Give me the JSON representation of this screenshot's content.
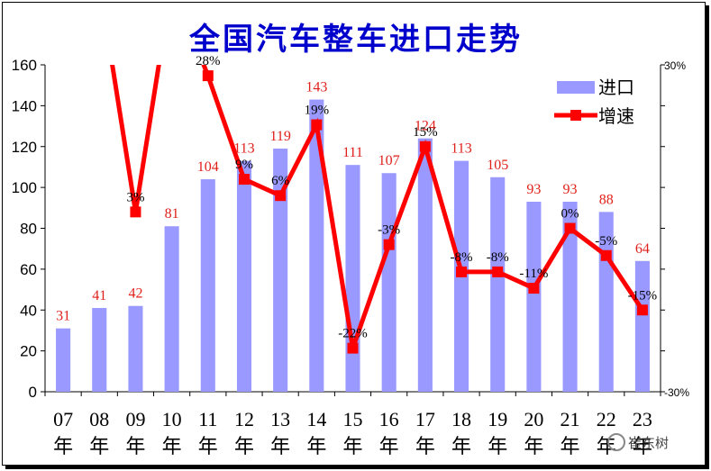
{
  "chart_data": {
    "type": "bar",
    "title": "全国汽车整车进口走势",
    "categories": [
      "07",
      "08",
      "09",
      "10",
      "11",
      "12",
      "13",
      "14",
      "15",
      "16",
      "17",
      "18",
      "19",
      "20",
      "21",
      "22",
      "23"
    ],
    "category_suffix": "年",
    "series": [
      {
        "name": "进口",
        "type": "bar",
        "axis": "left",
        "color": "#9999ff",
        "values": [
          31,
          41,
          42,
          81,
          104,
          113,
          119,
          143,
          111,
          107,
          124,
          113,
          105,
          93,
          93,
          88,
          64
        ]
      },
      {
        "name": "增速",
        "type": "line",
        "axis": "right",
        "color": "#ff0000",
        "values": [
          null,
          null,
          3,
          null,
          28,
          9,
          6,
          19,
          -22,
          -3,
          15,
          -8,
          -8,
          -11,
          0,
          -5,
          -15
        ]
      }
    ],
    "bar_labels": [
      "31",
      "41",
      "42",
      "81",
      "104",
      "113",
      "119",
      "143",
      "111",
      "107",
      "124",
      "113",
      "105",
      "93",
      "93",
      "88",
      "64"
    ],
    "pct_labels": [
      "",
      "",
      "3%",
      "",
      "28%",
      "9%",
      "6%",
      "19%",
      "-22%",
      "-3%",
      "15%",
      "-8%",
      "-8%",
      "-11%",
      "0%",
      "-5%",
      "-15%"
    ],
    "off_chart_trend": "line exits above the top at 08 and 10",
    "y_left": {
      "range": [
        0,
        160
      ],
      "ticks": [
        "0",
        "20",
        "40",
        "60",
        "80",
        "100",
        "120",
        "140",
        "160"
      ]
    },
    "y_right": {
      "range": [
        -30,
        30
      ],
      "ticks": [
        "30%",
        "-30%"
      ]
    },
    "legend": {
      "placement": "top-right",
      "items": [
        "进口",
        "增速"
      ]
    },
    "grid": false,
    "watermark": "崔东树"
  }
}
